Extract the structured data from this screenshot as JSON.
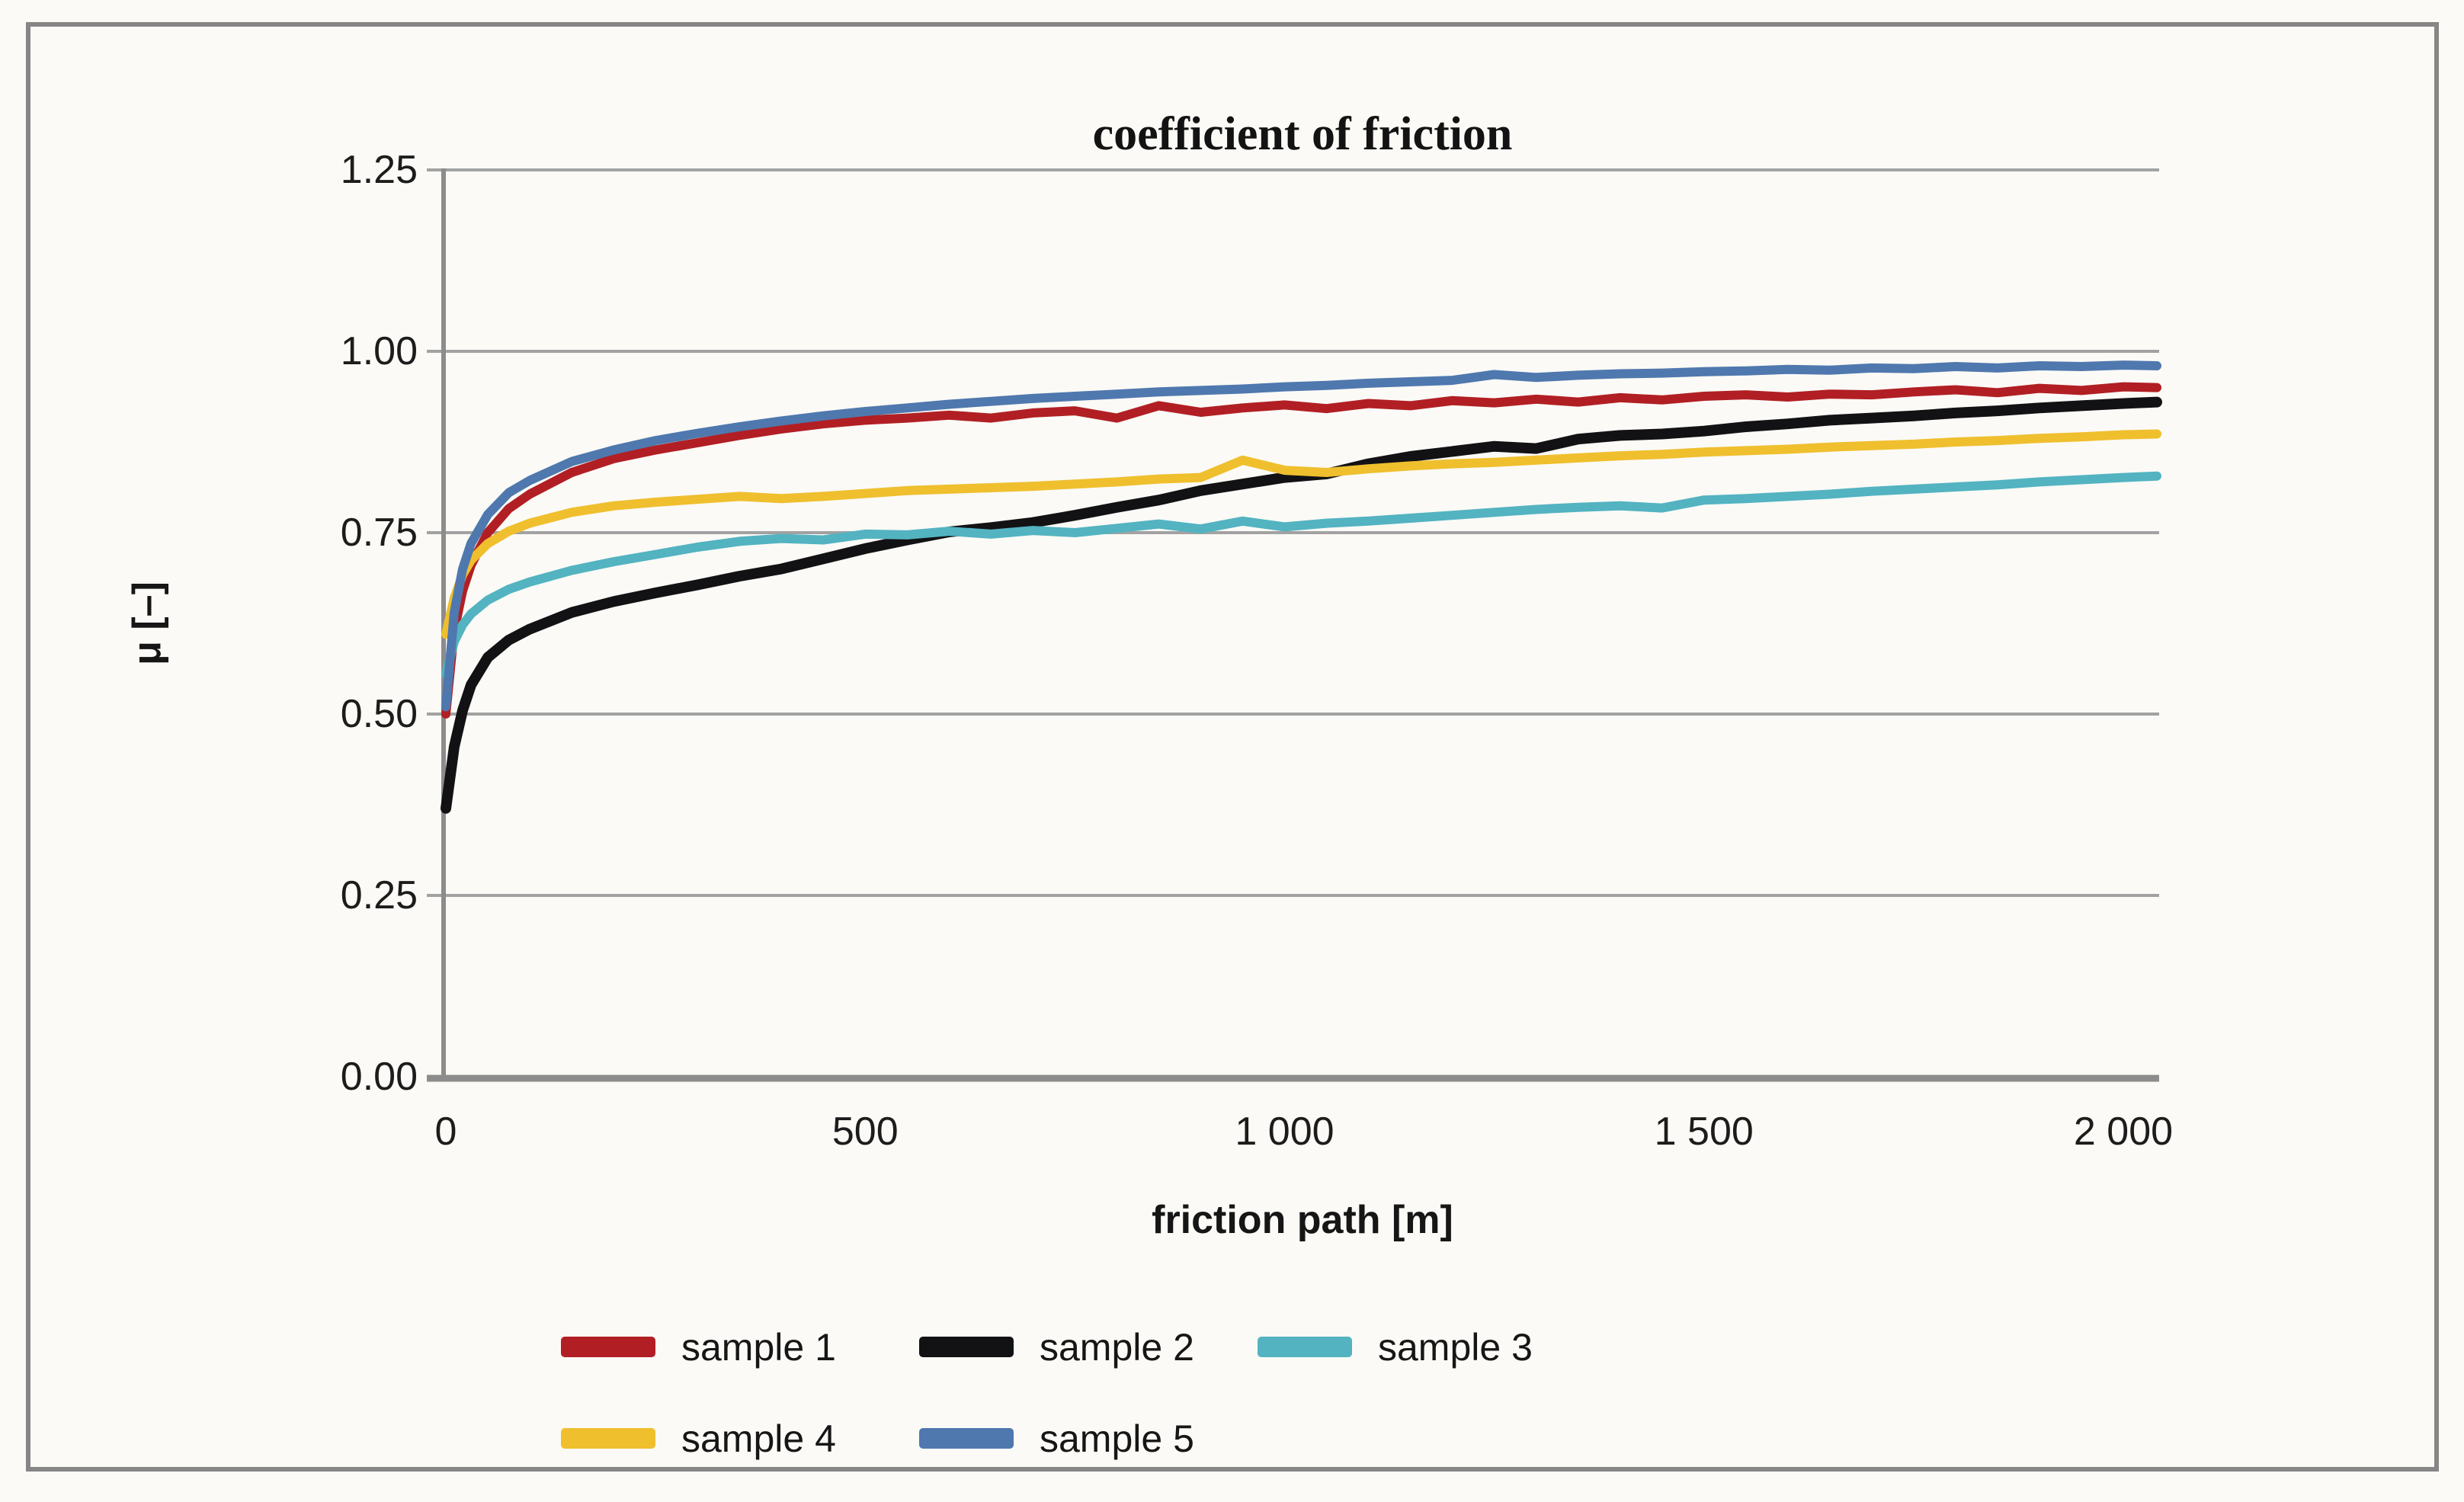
{
  "figure": {
    "background": "#fbfaf6",
    "border_color": "#868686"
  },
  "chart_data": {
    "type": "line",
    "title": "coefficient of friction",
    "xlabel": "friction path [m]",
    "ylabel": "μ [–]",
    "xlim": [
      0,
      2040
    ],
    "ylim": [
      0.0,
      1.25
    ],
    "grid": true,
    "legend_position": "bottom-left-two-rows",
    "x_ticks": [
      {
        "value": 0,
        "label": "0"
      },
      {
        "value": 500,
        "label": "500"
      },
      {
        "value": 1000,
        "label": "1 000"
      },
      {
        "value": 1500,
        "label": "1 500"
      },
      {
        "value": 2000,
        "label": "2 000"
      }
    ],
    "y_ticks": [
      {
        "value": 0.0,
        "label": "0.00"
      },
      {
        "value": 0.25,
        "label": "0.25"
      },
      {
        "value": 0.5,
        "label": "0.50"
      },
      {
        "value": 0.75,
        "label": "0.75"
      },
      {
        "value": 1.0,
        "label": "1.00"
      },
      {
        "value": 1.25,
        "label": "1.25"
      }
    ],
    "x": [
      0,
      10,
      20,
      30,
      50,
      75,
      100,
      150,
      200,
      250,
      300,
      350,
      400,
      450,
      500,
      550,
      600,
      650,
      700,
      750,
      800,
      850,
      900,
      950,
      1000,
      1050,
      1100,
      1150,
      1200,
      1250,
      1300,
      1350,
      1400,
      1450,
      1500,
      1550,
      1600,
      1650,
      1700,
      1750,
      1800,
      1850,
      1900,
      1950,
      2000,
      2040
    ],
    "series": [
      {
        "name": "sample 1",
        "color": "#b11f24",
        "values": [
          0.5,
          0.615,
          0.67,
          0.705,
          0.75,
          0.783,
          0.803,
          0.833,
          0.852,
          0.864,
          0.874,
          0.884,
          0.893,
          0.9,
          0.905,
          0.908,
          0.912,
          0.908,
          0.915,
          0.918,
          0.908,
          0.925,
          0.916,
          0.922,
          0.926,
          0.921,
          0.928,
          0.925,
          0.932,
          0.929,
          0.934,
          0.93,
          0.936,
          0.933,
          0.938,
          0.94,
          0.937,
          0.941,
          0.94,
          0.944,
          0.947,
          0.943,
          0.949,
          0.946,
          0.951,
          0.95
        ]
      },
      {
        "name": "sample 2",
        "color": "#121215",
        "values": [
          0.37,
          0.455,
          0.505,
          0.54,
          0.578,
          0.602,
          0.617,
          0.64,
          0.655,
          0.667,
          0.678,
          0.69,
          0.7,
          0.714,
          0.728,
          0.74,
          0.751,
          0.757,
          0.764,
          0.774,
          0.785,
          0.795,
          0.808,
          0.817,
          0.826,
          0.831,
          0.845,
          0.855,
          0.862,
          0.869,
          0.866,
          0.879,
          0.884,
          0.886,
          0.89,
          0.896,
          0.9,
          0.905,
          0.908,
          0.911,
          0.915,
          0.918,
          0.922,
          0.925,
          0.928,
          0.93
        ]
      },
      {
        "name": "sample 3",
        "color": "#53b3c1",
        "values": [
          0.555,
          0.6,
          0.623,
          0.638,
          0.657,
          0.672,
          0.682,
          0.698,
          0.71,
          0.72,
          0.73,
          0.738,
          0.742,
          0.74,
          0.748,
          0.747,
          0.752,
          0.748,
          0.753,
          0.75,
          0.756,
          0.762,
          0.755,
          0.766,
          0.758,
          0.763,
          0.766,
          0.77,
          0.774,
          0.778,
          0.782,
          0.785,
          0.787,
          0.784,
          0.795,
          0.797,
          0.8,
          0.803,
          0.807,
          0.81,
          0.813,
          0.816,
          0.82,
          0.823,
          0.826,
          0.828
        ]
      },
      {
        "name": "sample 4",
        "color": "#efbf2e",
        "values": [
          0.61,
          0.66,
          0.692,
          0.712,
          0.735,
          0.752,
          0.763,
          0.778,
          0.787,
          0.792,
          0.796,
          0.8,
          0.797,
          0.8,
          0.804,
          0.808,
          0.81,
          0.812,
          0.814,
          0.817,
          0.82,
          0.824,
          0.826,
          0.85,
          0.836,
          0.833,
          0.838,
          0.842,
          0.845,
          0.847,
          0.85,
          0.853,
          0.856,
          0.858,
          0.861,
          0.863,
          0.865,
          0.868,
          0.87,
          0.872,
          0.875,
          0.877,
          0.88,
          0.882,
          0.885,
          0.886
        ]
      },
      {
        "name": "sample 5",
        "color": "#4f78ae",
        "values": [
          0.51,
          0.64,
          0.7,
          0.735,
          0.775,
          0.805,
          0.822,
          0.848,
          0.864,
          0.877,
          0.887,
          0.896,
          0.904,
          0.911,
          0.917,
          0.922,
          0.927,
          0.931,
          0.935,
          0.938,
          0.941,
          0.944,
          0.946,
          0.948,
          0.951,
          0.953,
          0.956,
          0.958,
          0.96,
          0.968,
          0.964,
          0.967,
          0.969,
          0.97,
          0.972,
          0.973,
          0.975,
          0.974,
          0.977,
          0.976,
          0.979,
          0.977,
          0.98,
          0.979,
          0.981,
          0.98
        ]
      }
    ],
    "legend_rows": [
      [
        0,
        1,
        2
      ],
      [
        3,
        4
      ]
    ]
  }
}
